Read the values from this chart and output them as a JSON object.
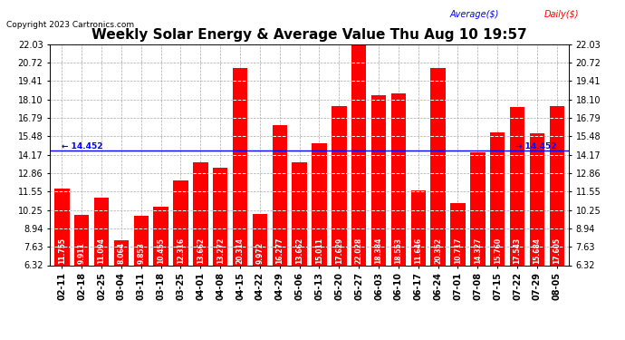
{
  "title": "Weekly Solar Energy & Average Value Thu Aug 10 19:57",
  "copyright": "Copyright 2023 Cartronics.com",
  "legend_avg": "Average($)",
  "legend_daily": "Daily($)",
  "average_value": 14.452,
  "categories": [
    "02-11",
    "02-18",
    "02-25",
    "03-04",
    "03-11",
    "03-18",
    "03-25",
    "04-01",
    "04-08",
    "04-15",
    "04-22",
    "04-29",
    "05-06",
    "05-13",
    "05-20",
    "05-27",
    "06-03",
    "06-10",
    "06-17",
    "06-24",
    "07-01",
    "07-08",
    "07-15",
    "07-22",
    "07-29",
    "08-05"
  ],
  "values": [
    11.755,
    9.911,
    11.094,
    8.064,
    9.853,
    10.455,
    12.316,
    13.662,
    13.272,
    20.314,
    9.972,
    16.277,
    13.662,
    15.011,
    17.629,
    22.028,
    18.384,
    18.553,
    11.646,
    20.352,
    10.717,
    14.327,
    15.76,
    17.543,
    15.684,
    17.605
  ],
  "bar_color": "#ff0000",
  "avg_line_color": "#0000ff",
  "background_color": "#ffffff",
  "plot_bg_color": "#ffffff",
  "grid_color": "#aaaaaa",
  "ytick_labels": [
    "6.32",
    "7.63",
    "8.94",
    "10.25",
    "11.55",
    "12.86",
    "14.17",
    "15.48",
    "16.79",
    "18.10",
    "19.41",
    "20.72",
    "22.03"
  ],
  "yticks": [
    6.32,
    7.63,
    8.94,
    10.25,
    11.55,
    12.86,
    14.17,
    15.48,
    16.79,
    18.1,
    19.41,
    20.72,
    22.03
  ],
  "ymin": 6.32,
  "ymax": 22.03,
  "title_fontsize": 11,
  "tick_fontsize": 7,
  "bar_label_fontsize": 5.5,
  "avg_label_fontsize": 6.5,
  "copyright_fontsize": 6.5
}
